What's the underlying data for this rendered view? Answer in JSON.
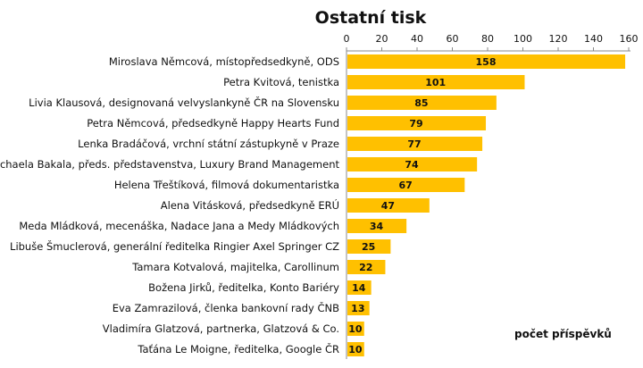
{
  "chart_data": {
    "type": "bar",
    "orientation": "horizontal",
    "title": "Ostatní tisk",
    "categories": [
      "Miroslava Němcová, místopředsedkyně, ODS",
      "Petra Kvitová, tenistka",
      "Livia Klausová, designovaná velvyslankyně ČR na Slovensku",
      "Petra Němcová, předsedkyně Happy Hearts Fund",
      "Lenka Bradáčová, vrchní státní zástupkyně v Praze",
      "Michaela Bakala, předs. představenstva, Luxury Brand Management",
      "Helena Třeštíková, filmová dokumentaristka",
      "Alena Vitásková, předsedkyně ERÚ",
      "Meda Mládková, mecenáška, Nadace Jana a Medy Mládkových",
      "Libuše Šmuclerová, generální ředitelka Ringier Axel Springer CZ",
      "Tamara Kotvalová, majitelka, Carollinum",
      "Božena Jirků, ředitelka, Konto Bariéry",
      "Eva Zamrazilová, členka bankovní rady ČNB",
      "Vladimíra Glatzová, partnerka, Glatzová & Co.",
      "Taťána Le Moigne, ředitelka, Google ČR"
    ],
    "series": [
      {
        "name": "počet příspěvků",
        "values": [
          158,
          101,
          85,
          79,
          77,
          74,
          67,
          47,
          34,
          25,
          22,
          14,
          13,
          10,
          10
        ]
      }
    ],
    "xlim": [
      0,
      160
    ],
    "xticks": [
      0,
      20,
      40,
      60,
      80,
      100,
      120,
      140,
      160
    ],
    "axis_position": "top",
    "bar_color": "#FFC000",
    "data_labels": true,
    "legend_position": "bottom-right",
    "grid": false
  }
}
